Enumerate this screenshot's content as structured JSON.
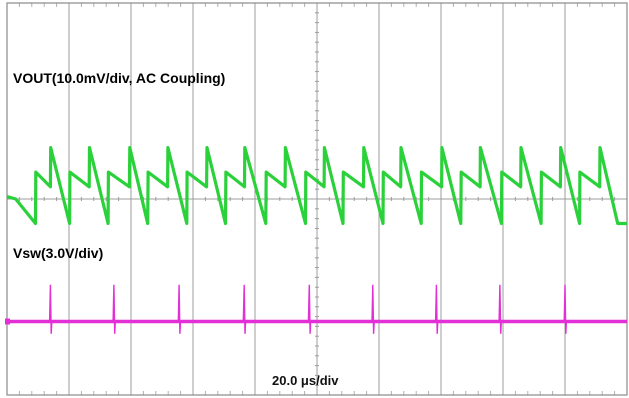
{
  "colors": {
    "background": "#ffffff",
    "grid": "#9c9c9c",
    "vout": "#2bd13a",
    "vsw": "#e32fd6"
  },
  "labels": {
    "vout": "VOUT(10.0mV/div, AC Coupling)",
    "vsw": "Vsw(3.0V/div)",
    "timebase": "20.0 μs/div"
  },
  "chart_data": {
    "type": "line",
    "title": "",
    "xlabel": "20.0 μs/div",
    "ylabel": "",
    "grid": true,
    "x_divisions": 10,
    "y_divisions": 8,
    "time_per_div_us": 20.0,
    "xlim_us": [
      0,
      200
    ],
    "series": [
      {
        "name": "VOUT(10.0mV/div, AC Coupling)",
        "color": "#2bd13a",
        "units": "div",
        "x": [
          0,
          2.8,
          9.2,
          9.3,
          14.0,
          14.1,
          20.2,
          20.3,
          26.5,
          26.6,
          32.6,
          32.7,
          39.5,
          39.6,
          45.4,
          45.5,
          51.8,
          51.9,
          58.0,
          58.1,
          64.4,
          64.5,
          70.5,
          70.6,
          76.6,
          76.7,
          83.5,
          83.6,
          89.7,
          89.8,
          96.3,
          96.4,
          102.3,
          102.4,
          108.4,
          108.5,
          115.0,
          115.1,
          121.3,
          121.4,
          127.0,
          127.1,
          133.6,
          133.7,
          140.2,
          140.3,
          146.4,
          146.5,
          152.6,
          152.7,
          159.5,
          159.6,
          165.7,
          165.8,
          172.3,
          172.4,
          178.5,
          178.6,
          184.7,
          184.8,
          191.2,
          191.3,
          197.0,
          200.0
        ],
        "values": [
          0.05,
          0.0,
          -0.5,
          0.55,
          0.25,
          1.05,
          -0.5,
          0.55,
          0.25,
          1.05,
          -0.5,
          0.55,
          0.25,
          1.05,
          -0.5,
          0.55,
          0.25,
          1.05,
          -0.5,
          0.55,
          0.25,
          1.05,
          -0.5,
          0.55,
          0.25,
          1.05,
          -0.5,
          0.55,
          0.25,
          1.05,
          -0.5,
          0.55,
          0.25,
          1.05,
          -0.5,
          0.55,
          0.25,
          1.05,
          -0.5,
          0.55,
          0.25,
          1.05,
          -0.5,
          0.55,
          0.25,
          1.05,
          -0.5,
          0.55,
          0.25,
          1.05,
          -0.5,
          0.55,
          0.25,
          1.05,
          -0.5,
          0.55,
          0.25,
          1.05,
          -0.5,
          0.55,
          0.25,
          1.05,
          -0.5,
          -0.5
        ]
      },
      {
        "name": "Vsw(3.0V/div)",
        "color": "#e32fd6",
        "units": "div",
        "baseline": -2.5,
        "spike_times_us": [
          14.0,
          34.5,
          55.5,
          76.5,
          97.5,
          118.0,
          138.5,
          159.0,
          180.0
        ],
        "spike_peak": -1.75,
        "spike_dip": -2.75
      }
    ]
  }
}
